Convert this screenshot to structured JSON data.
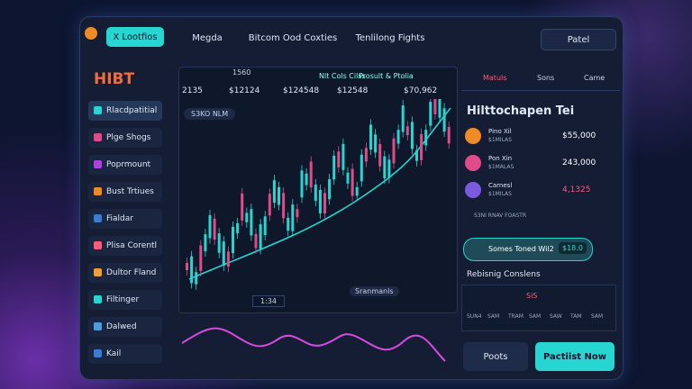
{
  "header": {
    "tab": "X Lootfios",
    "nav": [
      "Megda",
      "Bitcom Ood Coxties",
      "Tenlilong Fights"
    ],
    "action": "Patel"
  },
  "sidebar": {
    "brand": "HIBT",
    "items": [
      "Rlacdpatitial",
      "Plge Shogs",
      "Poprmount",
      "Bust Trtiues",
      "Fialdar",
      "Plisa Corentl",
      "Dultor Fland",
      "Filtinger",
      "Dalwed",
      "Kail"
    ]
  },
  "chart": {
    "code": "1560",
    "prices": [
      "2135",
      "$12124",
      "$124548",
      "$12548",
      "$70,962"
    ],
    "tabs": [
      "Nlt Cols Cilss",
      "Prosult & Ptolia"
    ],
    "tag": "S3KO NLM",
    "time": "1:34",
    "bottom": "Sranmanls"
  },
  "panel": {
    "tabs": [
      "Matuls",
      "Sons",
      "Came"
    ],
    "title": "Hilttochapen Tei",
    "rows": [
      {
        "name": "Pino Xil",
        "sub": "$1MILAS",
        "value": "$55,000"
      },
      {
        "name": "Pon Xin",
        "sub": "$1MALAS",
        "value": "243,000"
      },
      {
        "name": "Carnesl",
        "sub": "$1MILAS",
        "value": "4,1325"
      }
    ],
    "small": "S3NI RNAV FOASTR",
    "pill": "Somes Toned Wil2",
    "pill_value": "$18.0",
    "section": "Rebisnig Conslens",
    "mini_title": "SiS",
    "mini_labels": [
      "SUN4",
      "SAM",
      "TRAM",
      "SAM",
      "SAW",
      "TAM",
      "SAM"
    ],
    "buttons": [
      "Poots",
      "Pactiist Now"
    ]
  }
}
